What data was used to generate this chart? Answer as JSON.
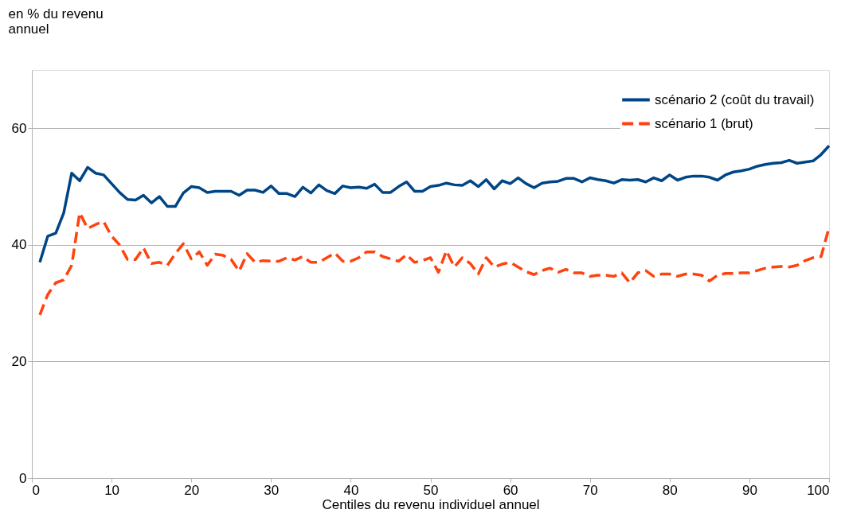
{
  "chart_data": {
    "type": "line",
    "ylabel": "en % du revenu annuel",
    "xlabel": "Centiles du revenu individuel annuel",
    "x": [
      1,
      2,
      3,
      4,
      5,
      6,
      7,
      8,
      9,
      10,
      11,
      12,
      13,
      14,
      15,
      16,
      17,
      18,
      19,
      20,
      21,
      22,
      23,
      24,
      25,
      26,
      27,
      28,
      29,
      30,
      31,
      32,
      33,
      34,
      35,
      36,
      37,
      38,
      39,
      40,
      41,
      42,
      43,
      44,
      45,
      46,
      47,
      48,
      49,
      50,
      51,
      52,
      53,
      54,
      55,
      56,
      57,
      58,
      59,
      60,
      61,
      62,
      63,
      64,
      65,
      66,
      67,
      68,
      69,
      70,
      71,
      72,
      73,
      74,
      75,
      76,
      77,
      78,
      79,
      80,
      81,
      82,
      83,
      84,
      85,
      86,
      87,
      88,
      89,
      90,
      91,
      92,
      93,
      94,
      95,
      96,
      97,
      98,
      99,
      100
    ],
    "series": [
      {
        "name": "scénario 2 (coût du travail)",
        "color": "#004586",
        "line_style": "solid",
        "values": [
          37,
          41.5,
          42,
          45.5,
          52.3,
          51,
          53.3,
          52.3,
          52,
          50.5,
          49,
          47.8,
          47.7,
          48.5,
          47.2,
          48.3,
          46.6,
          46.6,
          48.9,
          50,
          49.8,
          49,
          49.2,
          49.2,
          49.2,
          48.5,
          49.4,
          49.4,
          49,
          50.1,
          48.8,
          48.8,
          48.3,
          49.9,
          48.9,
          50.3,
          49.3,
          48.8,
          50.1,
          49.8,
          49.9,
          49.7,
          50.4,
          49,
          49,
          50,
          50.8,
          49.2,
          49.2,
          50,
          50.2,
          50.6,
          50.3,
          50.2,
          51,
          50,
          51.2,
          49.6,
          51,
          50.5,
          51.5,
          50.5,
          49.8,
          50.6,
          50.8,
          50.9,
          51.4,
          51.4,
          50.8,
          51.5,
          51.2,
          51,
          50.6,
          51.2,
          51.1,
          51.2,
          50.8,
          51.5,
          51,
          52,
          51.1,
          51.6,
          51.8,
          51.8,
          51.6,
          51.1,
          52,
          52.5,
          52.7,
          53,
          53.5,
          53.8,
          54,
          54.1,
          54.5,
          54,
          54.2,
          54.4,
          55.5,
          57
        ]
      },
      {
        "name": "scénario 1 (brut)",
        "color": "#ff420e",
        "line_style": "dashed",
        "values": [
          28,
          31.5,
          33.5,
          34,
          36.5,
          45.5,
          42.8,
          43.5,
          44,
          41.5,
          40,
          37.5,
          37.5,
          39.5,
          36.8,
          37,
          36.5,
          38.5,
          40.2,
          37.6,
          38.8,
          36.5,
          38.4,
          38.2,
          37.5,
          35.5,
          38.5,
          37,
          37.3,
          37.2,
          37.2,
          37.8,
          37.4,
          38,
          37,
          37,
          37.8,
          38.6,
          37.2,
          37.2,
          37.8,
          38.8,
          38.8,
          38,
          37.6,
          37.2,
          38.3,
          37,
          37.3,
          37.8,
          35.3,
          39,
          36.2,
          37.8,
          36.8,
          35,
          37.8,
          36.2,
          36.7,
          37,
          36.2,
          35.4,
          34.9,
          35.6,
          36,
          35.3,
          35.8,
          35.2,
          35.2,
          34.6,
          34.8,
          34.8,
          34.6,
          35.2,
          33.5,
          35.2,
          35.6,
          34.6,
          35,
          35,
          34.6,
          35,
          35,
          34.8,
          33.8,
          34.8,
          35.1,
          35.1,
          35.2,
          35.2,
          35.6,
          36,
          36.2,
          36.3,
          36.2,
          36.5,
          37.3,
          37.8,
          38,
          43
        ]
      }
    ],
    "xlim": [
      0,
      100
    ],
    "xticks": [
      0,
      10,
      20,
      30,
      40,
      50,
      60,
      70,
      80,
      90,
      100
    ],
    "ylim": [
      0,
      70
    ],
    "yticks": [
      0,
      20,
      40,
      60
    ],
    "grid": "y",
    "legend": "top right",
    "marker": "none"
  }
}
